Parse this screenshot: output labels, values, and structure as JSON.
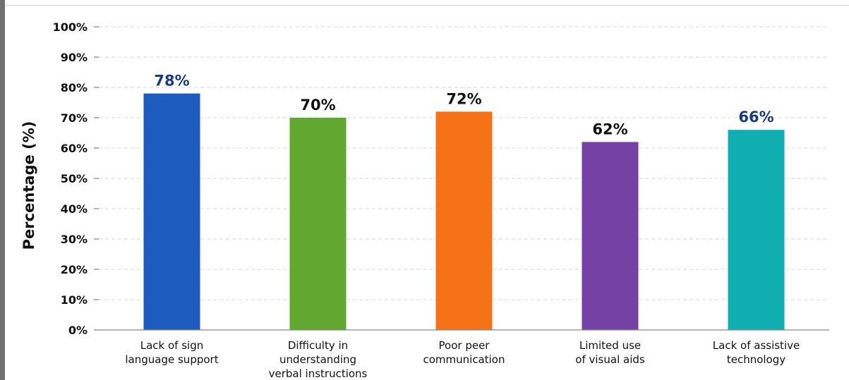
{
  "chart_data": {
    "type": "bar",
    "title": "",
    "xlabel": "",
    "ylabel": "Percentage (%)",
    "ylim": [
      0,
      100
    ],
    "yticks": [
      0,
      10,
      20,
      30,
      40,
      50,
      60,
      70,
      80,
      90,
      100
    ],
    "ytick_labels": [
      "0%",
      "10%",
      "20%",
      "30%",
      "40%",
      "50%",
      "60%",
      "70%",
      "80%",
      "90%",
      "100%"
    ],
    "grid": true,
    "legend": "none",
    "categories": [
      [
        "Lack of sign",
        "language support"
      ],
      [
        "Difficulty in",
        "understanding",
        "verbal instructions"
      ],
      [
        "Poor peer",
        "communication"
      ],
      [
        "Limited use",
        "of visual aids"
      ],
      [
        "Lack of assistive",
        "technology"
      ]
    ],
    "values": [
      78,
      70,
      72,
      62,
      66
    ],
    "value_labels": [
      "78%",
      "70%",
      "72%",
      "62%",
      "66%"
    ],
    "colors": [
      "#1e5bbf",
      "#62a830",
      "#f57316",
      "#7641a5",
      "#10aeb1"
    ],
    "label_colors": [
      "#1b3a7a",
      "#111111",
      "#111111",
      "#111111",
      "#1b3a7a"
    ]
  }
}
